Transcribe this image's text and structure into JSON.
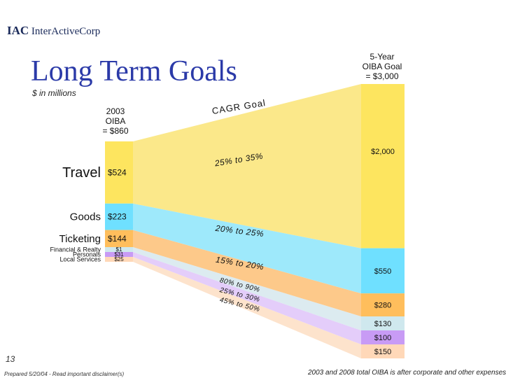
{
  "header": {
    "logo_text": "IAC",
    "logo_company": "InterActiveCorp",
    "title": "Long Term Goals",
    "subtitle": "$ in millions"
  },
  "labels": {
    "start_total_lines": [
      "2003",
      "OIBA",
      "= $860"
    ],
    "end_total_lines": [
      "5-Year",
      "OIBA Goal",
      "= $3,000"
    ],
    "cagr_goal": "CAGR Goal",
    "page_number": "13",
    "footer_left": "Prepared 5/20/04 - Read important disclaimer(s)",
    "footer_right": "2003 and 2008 total OIBA is after corporate and other expenses"
  },
  "chart_data": {
    "type": "flow",
    "title": "Long Term Goals",
    "unit": "$ in millions",
    "start": {
      "label": "2003 OIBA",
      "total": 860
    },
    "end": {
      "label": "5-Year OIBA Goal",
      "total": 3000
    },
    "segments": [
      {
        "name": "Travel",
        "start_value": 524,
        "start_label": "$524",
        "end_value": 2000,
        "end_label": "$2,000",
        "cagr": "25% to 35%",
        "color": "#fde55f",
        "band_color": "#fbe88a",
        "name_size": "large"
      },
      {
        "name": "Goods",
        "start_value": 223,
        "start_label": "$223",
        "end_value": 550,
        "end_label": "$550",
        "cagr": "20% to 25%",
        "color": "#6fe0ff",
        "band_color": "#9ee9fb",
        "name_size": "medium"
      },
      {
        "name": "Ticketing",
        "start_value": 144,
        "start_label": "$144",
        "end_value": 280,
        "end_label": "$280",
        "cagr": "15% to 20%",
        "color": "#ffbe5c",
        "band_color": "#fdc98a",
        "name_size": "medium"
      },
      {
        "name": "Financial & Realty",
        "start_value": 1,
        "start_label": "$1",
        "end_value": 130,
        "end_label": "$130",
        "cagr": "80% to 90%",
        "color": "#cfe8ee",
        "band_color": "#dcebf0",
        "name_size": "small"
      },
      {
        "name": "Personals",
        "start_value": 31,
        "start_label": "$31",
        "end_value": 100,
        "end_label": "$100",
        "cagr": "25% to 30%",
        "color": "#c89bf5",
        "band_color": "#e4cdfa",
        "name_size": "small"
      },
      {
        "name": "Local Services",
        "start_value": 25,
        "start_label": "$25",
        "end_value": 150,
        "end_label": "$150",
        "cagr": "45% to 50%",
        "color": "#ffd8b8",
        "band_color": "#fde3cc",
        "name_size": "small"
      }
    ]
  }
}
